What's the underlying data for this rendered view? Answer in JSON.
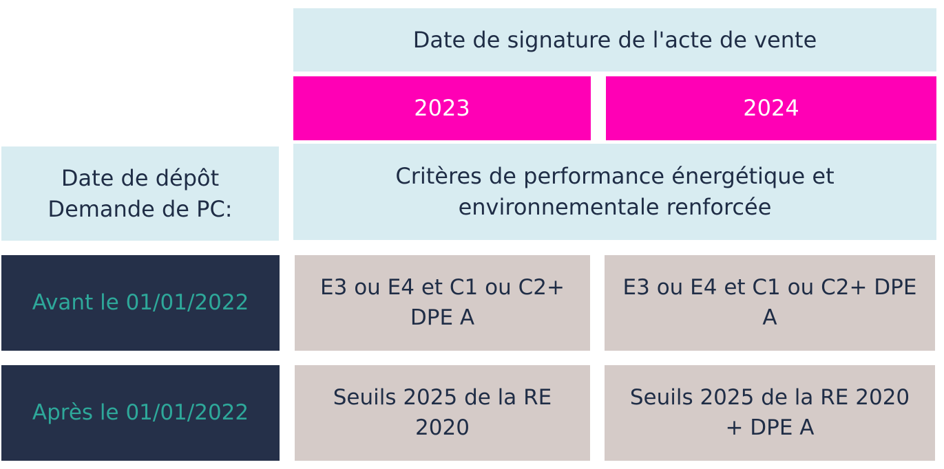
{
  "header": {
    "title": "Date de signature de l'acte de vente",
    "years": [
      "2023",
      "2024"
    ]
  },
  "row_header": {
    "line1": "Date de dépôt",
    "line2": "Demande de PC:"
  },
  "criteria_title": {
    "line1": "Critères de performance énergétique et",
    "line2": "environnementale renforcée"
  },
  "rows": [
    {
      "label": "Avant le 01/01/2022",
      "cell_2023": {
        "line1": "E3 ou E4 et C1 ou C2+",
        "line2": "DPE A"
      },
      "cell_2024": {
        "line1": "E3 ou E4 et C1 ou C2+ DPE",
        "line2": "A"
      }
    },
    {
      "label": "Après le 01/01/2022",
      "cell_2023": {
        "line1": "Seuils 2025 de la RE 2020"
      },
      "cell_2024": {
        "line1": "Seuils 2025 de la RE 2020",
        "line2": "+ DPE A"
      }
    }
  ],
  "colors": {
    "light_blue": "#d8ecf1",
    "pink": "#ff00b5",
    "navy": "#253049",
    "teal_text": "#2ea89a",
    "beige": "#d5cbc8",
    "dark_text": "#1f2d46"
  }
}
